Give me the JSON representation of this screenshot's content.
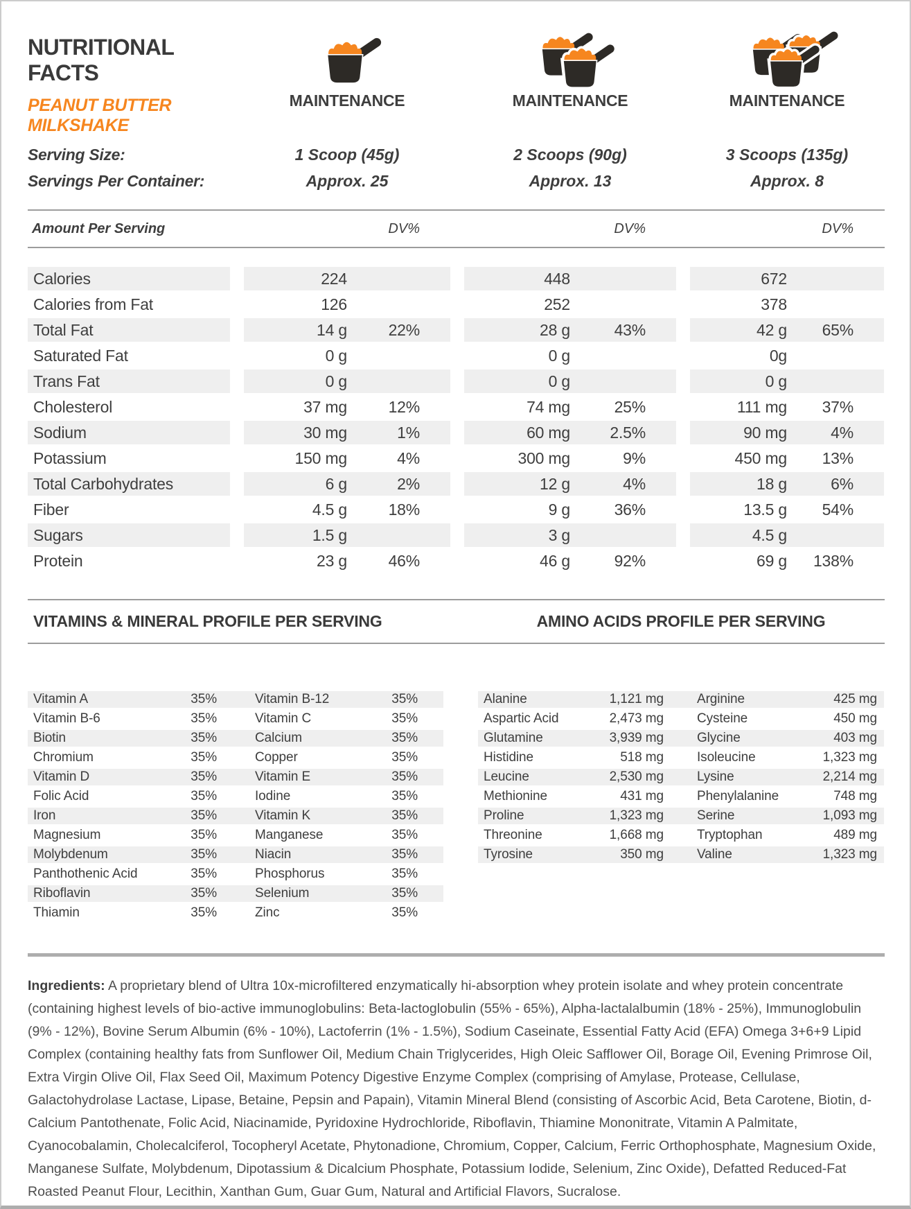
{
  "header": {
    "title": "NUTRITIONAL FACTS",
    "subtitle": "PEANUT BUTTER MILKSHAKE",
    "serving_size_label": "Serving Size:",
    "servings_per_container_label": "Servings Per Container:",
    "columns": [
      {
        "plan": "MAINTENANCE",
        "serving_size": "1 Scoop (45g)",
        "servings": "Approx. 25",
        "scoops": 1
      },
      {
        "plan": "MAINTENANCE",
        "serving_size": "2 Scoops (90g)",
        "servings": "Approx. 13",
        "scoops": 2
      },
      {
        "plan": "MAINTENANCE",
        "serving_size": "3 Scoops (135g)",
        "servings": "Approx. 8",
        "scoops": 3
      }
    ]
  },
  "nutrition_table": {
    "amount_per_serving_label": "Amount Per Serving",
    "dv_label": "DV%",
    "rows": [
      {
        "name": "Calories",
        "values": [
          [
            "224",
            ""
          ],
          [
            "448",
            ""
          ],
          [
            "672",
            ""
          ]
        ]
      },
      {
        "name": "Calories from Fat",
        "values": [
          [
            "126",
            ""
          ],
          [
            "252",
            ""
          ],
          [
            "378",
            ""
          ]
        ]
      },
      {
        "name": "Total Fat",
        "values": [
          [
            "14 g",
            "22%"
          ],
          [
            "28 g",
            "43%"
          ],
          [
            "42 g",
            "65%"
          ]
        ]
      },
      {
        "name": "Saturated Fat",
        "values": [
          [
            "0 g",
            ""
          ],
          [
            "0 g",
            ""
          ],
          [
            "0g",
            ""
          ]
        ]
      },
      {
        "name": "Trans Fat",
        "values": [
          [
            "0 g",
            ""
          ],
          [
            "0 g",
            ""
          ],
          [
            "0 g",
            ""
          ]
        ]
      },
      {
        "name": "Cholesterol",
        "values": [
          [
            "37 mg",
            "12%"
          ],
          [
            "74 mg",
            "25%"
          ],
          [
            "111 mg",
            "37%"
          ]
        ]
      },
      {
        "name": "Sodium",
        "values": [
          [
            "30 mg",
            "1%"
          ],
          [
            "60 mg",
            "2.5%"
          ],
          [
            "90 mg",
            "4%"
          ]
        ]
      },
      {
        "name": "Potassium",
        "values": [
          [
            "150 mg",
            "4%"
          ],
          [
            "300 mg",
            "9%"
          ],
          [
            "450 mg",
            "13%"
          ]
        ]
      },
      {
        "name": "Total Carbohydrates",
        "values": [
          [
            "6 g",
            "2%"
          ],
          [
            "12 g",
            "4%"
          ],
          [
            "18 g",
            "6%"
          ]
        ]
      },
      {
        "name": "Fiber",
        "values": [
          [
            "4.5 g",
            "18%"
          ],
          [
            "9 g",
            "36%"
          ],
          [
            "13.5 g",
            "54%"
          ]
        ]
      },
      {
        "name": "Sugars",
        "values": [
          [
            "1.5 g",
            ""
          ],
          [
            "3 g",
            ""
          ],
          [
            "4.5 g",
            ""
          ]
        ]
      },
      {
        "name": "Protein",
        "values": [
          [
            "23 g",
            "46%"
          ],
          [
            "46 g",
            "92%"
          ],
          [
            "69 g",
            "138%"
          ]
        ]
      }
    ]
  },
  "vitamins": {
    "title": "VITAMINS & MINERAL PROFILE PER SERVING",
    "rows": [
      [
        "Vitamin A",
        "35%",
        "Vitamin B-12",
        "35%"
      ],
      [
        "Vitamin B-6",
        "35%",
        "Vitamin C",
        "35%"
      ],
      [
        "Biotin",
        "35%",
        "Calcium",
        "35%"
      ],
      [
        "Chromium",
        "35%",
        "Copper",
        "35%"
      ],
      [
        "Vitamin D",
        "35%",
        "Vitamin E",
        "35%"
      ],
      [
        "Folic Acid",
        "35%",
        "Iodine",
        "35%"
      ],
      [
        "Iron",
        "35%",
        "Vitamin K",
        "35%"
      ],
      [
        "Magnesium",
        "35%",
        "Manganese",
        "35%"
      ],
      [
        "Molybdenum",
        "35%",
        "Niacin",
        "35%"
      ],
      [
        "Panthothenic Acid",
        "35%",
        "Phosphorus",
        "35%"
      ],
      [
        "Riboflavin",
        "35%",
        "Selenium",
        "35%"
      ],
      [
        "Thiamin",
        "35%",
        "Zinc",
        "35%"
      ]
    ]
  },
  "amino_acids": {
    "title": "AMINO ACIDS PROFILE PER SERVING",
    "rows": [
      [
        "Alanine",
        "1,121 mg",
        "Arginine",
        "425 mg"
      ],
      [
        "Aspartic Acid",
        "2,473 mg",
        "Cysteine",
        "450 mg"
      ],
      [
        "Glutamine",
        "3,939 mg",
        "Glycine",
        "403 mg"
      ],
      [
        "Histidine",
        "518 mg",
        "Isoleucine",
        "1,323 mg"
      ],
      [
        "Leucine",
        "2,530 mg",
        "Lysine",
        "2,214 mg"
      ],
      [
        "Methionine",
        "431 mg",
        "Phenylalanine",
        "748 mg"
      ],
      [
        "Proline",
        "1,323 mg",
        "Serine",
        "1,093 mg"
      ],
      [
        "Threonine",
        "1,668 mg",
        "Tryptophan",
        "489 mg"
      ],
      [
        "Tyrosine",
        "350 mg",
        "Valine",
        "1,323 mg"
      ]
    ]
  },
  "ingredients": {
    "label": "Ingredients:",
    "text": "A proprietary blend of Ultra 10x-microfiltered enzymatically hi-absorption whey protein isolate and whey protein concentrate (containing highest levels of bio-active immunoglobulins:  Beta-lactoglobulin (55% - 65%), Alpha-lactalalbumin (18% - 25%), Immunoglobulin (9% - 12%), Bovine Serum Albumin (6% - 10%), Lactoferrin (1% - 1.5%), Sodium Caseinate, Essential Fatty Acid (EFA) Omega 3+6+9 Lipid Complex (containing healthy fats from Sunflower Oil, Medium Chain Triglycerides, High Oleic Safflower Oil, Borage Oil, Evening Primrose Oil, Extra Virgin Olive Oil, Flax Seed Oil, Maximum Potency Digestive Enzyme Complex (comprising of Amylase, Protease, Cellulase, Galactohydrolase Lactase, Lipase, Betaine, Pepsin and Papain), Vitamin Mineral Blend (consisting of Ascorbic Acid, Beta Carotene, Biotin, d-Calcium Pantothenate, Folic Acid, Niacinamide, Pyridoxine Hydrochloride, Riboflavin, Thiamine Mononitrate, Vitamin A Palmitate, Cyanocobalamin, Cholecalciferol, Tocopheryl Acetate, Phytonadione, Chromium, Copper, Calcium, Ferric Orthophosphate, Magnesium Oxide, Manganese Sulfate, Molybdenum, Dipotassium & Dicalcium Phosphate, Potassium Iodide, Selenium, Zinc Oxide), Defatted Reduced-Fat Roasted Peanut Flour, Lecithin, Xanthan Gum, Guar Gum, Natural and Artificial Flavors, Sucralose."
  },
  "colors": {
    "accent_orange": "#F6861F",
    "row_shade": "#EFEFEF",
    "rule_gray": "#9C9C9C",
    "text_dark": "#3E3E3E"
  }
}
